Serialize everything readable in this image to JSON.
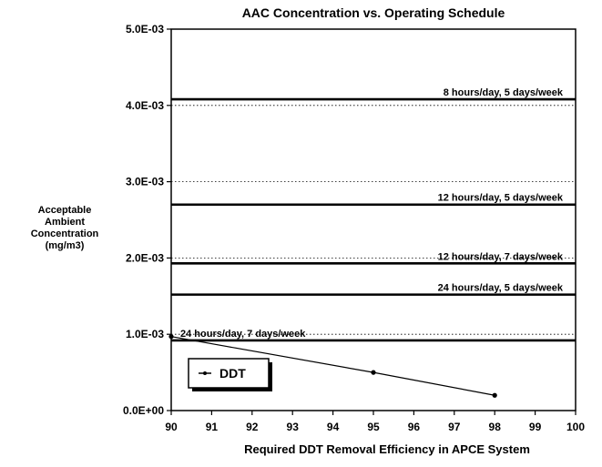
{
  "chart_data": {
    "type": "line",
    "title": "AAC Concentration vs. Operating Schedule",
    "xlabel": "Required DDT Removal Efficiency in APCE System",
    "ylabel_lines": [
      "Acceptable",
      "Ambient",
      "Concentration",
      "(mg/m3)"
    ],
    "xlim": [
      90,
      100
    ],
    "ylim": [
      0,
      0.005
    ],
    "x_ticks": [
      90,
      91,
      92,
      93,
      94,
      95,
      96,
      97,
      98,
      99,
      100
    ],
    "x_tick_labels": [
      "90",
      "91",
      "92",
      "93",
      "94",
      "95",
      "96",
      "97",
      "98",
      "99",
      "100"
    ],
    "y_ticks": [
      0,
      0.001,
      0.002,
      0.003,
      0.004,
      0.005
    ],
    "y_tick_labels": [
      "0.0E+00",
      "1.0E-03",
      "2.0E-03",
      "3.0E-03",
      "4.0E-03",
      "5.0E-03"
    ],
    "grid": "horizontal-dotted",
    "legend_position": "bottom-left",
    "series": [
      {
        "name": "DDT",
        "x": [
          90,
          95,
          98
        ],
        "y": [
          0.00097,
          0.0005,
          0.0002
        ]
      }
    ],
    "reference_lines": [
      {
        "label": "8 hours/day, 5 days/week",
        "y": 0.00408
      },
      {
        "label": "12 hours/day, 5 days/week",
        "y": 0.0027
      },
      {
        "label": "12 hours/day, 7 days/week",
        "y": 0.00193
      },
      {
        "label": "24 hours/day, 5 days/week",
        "y": 0.00152
      },
      {
        "label": "24 hours/day, 7 days/week",
        "y": 0.00092
      }
    ]
  }
}
